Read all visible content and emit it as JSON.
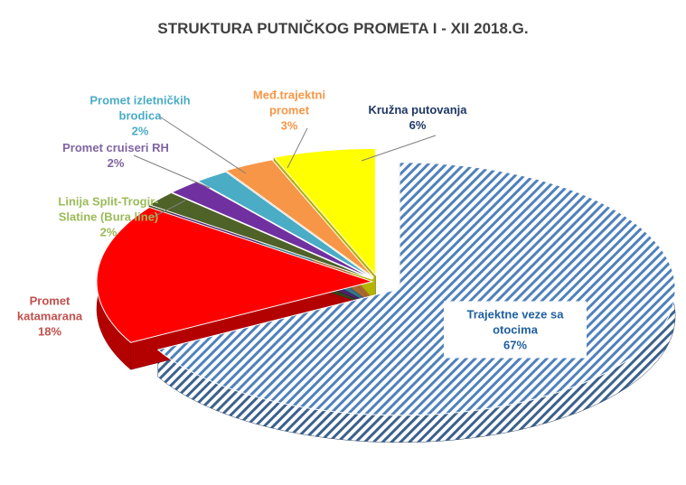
{
  "chart_data": {
    "type": "pie",
    "title": "STRUKTURA PUTNIČKOG PROMETA I - XII 2018.G.",
    "categories": [
      "Trajektne veze sa otocima",
      "Promet katamarana",
      "Linija Split-Trogir-Slatine (Bura line)",
      "Promet cruiseri RH",
      "Promet izletničkih brodica",
      "Međ.trajektni promet",
      "Kružna putovanja"
    ],
    "values": [
      67,
      18,
      2,
      2,
      2,
      3,
      6
    ],
    "value_labels": [
      "67%",
      "18%",
      "2%",
      "2%",
      "2%",
      "3%",
      "6%"
    ],
    "colors": [
      "#4f81bd",
      "#ff0000",
      "#4f6228",
      "#7030a0",
      "#4bacc6",
      "#f79646",
      "#ffff00"
    ],
    "label_colors": [
      "#1f5f9f",
      "#c0504d",
      "#9bbb59",
      "#8064a2",
      "#4bacc6",
      "#f79646",
      "#1f3864"
    ],
    "hatch": [
      true,
      false,
      false,
      false,
      false,
      false,
      false
    ]
  }
}
